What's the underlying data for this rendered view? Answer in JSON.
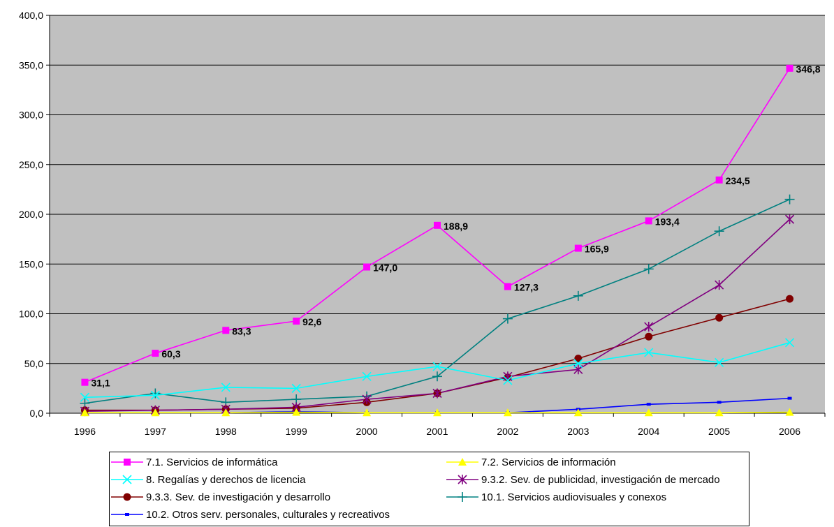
{
  "chart_data": {
    "type": "line",
    "categories": [
      "1996",
      "1997",
      "1998",
      "1999",
      "2000",
      "2001",
      "2002",
      "2003",
      "2004",
      "2005",
      "2006"
    ],
    "ylim": [
      0,
      400
    ],
    "yticks": [
      "0,0",
      "50,0",
      "100,0",
      "150,0",
      "200,0",
      "250,0",
      "300,0",
      "350,0",
      "400,0"
    ],
    "grid": true,
    "plot_background": "#c0c0c0",
    "legend_position": "bottom",
    "series": [
      {
        "name": "7.1. Servicios de informática",
        "color": "#ff00ff",
        "marker": "square",
        "values": [
          31.1,
          60.3,
          83.3,
          92.6,
          147.0,
          188.9,
          127.3,
          165.9,
          193.4,
          234.5,
          346.8
        ],
        "labels": [
          "31,1",
          "60,3",
          "83,3",
          "92,6",
          "147,0",
          "188,9",
          "127,3",
          "165,9",
          "193,4",
          "234,5",
          "346,8"
        ]
      },
      {
        "name": "7.2. Servicios de información",
        "color": "#ffff00",
        "marker": "triangle",
        "values": [
          0.5,
          0.5,
          0.5,
          1.0,
          0.5,
          0.5,
          0.5,
          0.5,
          0.5,
          0.5,
          1.0
        ]
      },
      {
        "name": "8. Regalías y derechos de licencia",
        "color": "#00ffff",
        "marker": "x",
        "values": [
          16,
          18,
          26,
          25,
          37,
          47,
          33,
          50,
          61,
          51,
          71
        ]
      },
      {
        "name": "9.3.2. Sev. de publicidad, investigación de mercado",
        "color": "#800080",
        "marker": "star",
        "values": [
          2,
          3,
          4,
          6,
          14,
          20,
          37,
          44,
          87,
          129,
          195
        ]
      },
      {
        "name": "9.3.3. Sev. de investigación y desarrollo",
        "color": "#800000",
        "marker": "circle",
        "values": [
          3,
          3,
          4,
          5,
          11,
          20,
          36,
          55,
          77,
          96,
          115
        ]
      },
      {
        "name": "10.1. Servicios audiovisuales y conexos",
        "color": "#008080",
        "marker": "plus",
        "values": [
          10,
          20,
          11,
          14,
          17,
          37,
          95,
          118,
          145,
          183,
          215
        ]
      },
      {
        "name": "10.2. Otros serv. personales, culturales y recreativos",
        "color": "#0000ff",
        "marker": "dash",
        "values": [
          0.5,
          0.5,
          0.5,
          1.5,
          0.5,
          0.5,
          0.5,
          4,
          9,
          11,
          15
        ]
      }
    ]
  }
}
